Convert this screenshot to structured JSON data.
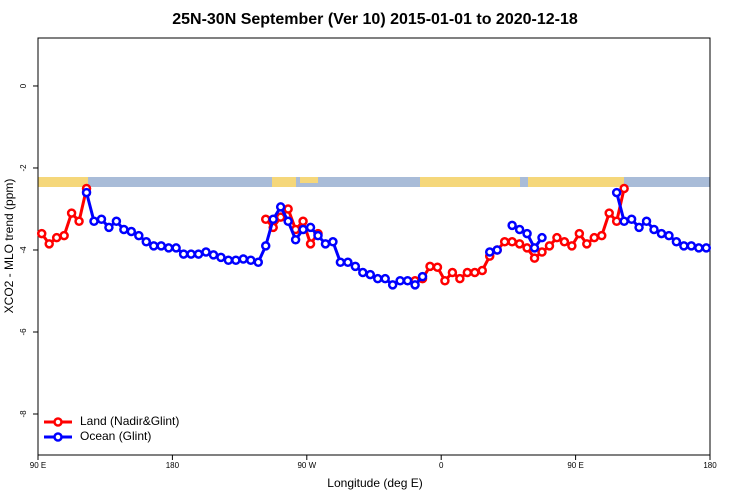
{
  "chart_data": {
    "type": "line",
    "title": "25N-30N September (Ver 10)   2015-01-01 to 2020-12-18",
    "x_label": "Longitude (deg E)",
    "y_label": "XCO2 - MLO trend (ppm)",
    "xlim": [
      90,
      540
    ],
    "ylim": [
      -9,
      1.17
    ],
    "xticks": [
      {
        "value": 90,
        "label": "90 E"
      },
      {
        "value": 180,
        "label": "180"
      },
      {
        "value": 270,
        "label": "90 W"
      },
      {
        "value": 360,
        "label": "0"
      },
      {
        "value": 450,
        "label": "90 E"
      },
      {
        "value": 540,
        "label": "180"
      }
    ],
    "yticks": [
      -8,
      -6,
      -4,
      -2,
      0
    ],
    "legend": "bottom-left",
    "series": [
      {
        "name": "Land (Nadir&Glint)",
        "color": "#ff0000",
        "x": [
          92.5,
          97.5,
          102.5,
          107.5,
          112.5,
          117.5,
          122.5,
          182.5,
          242.5,
          247.5,
          252.5,
          257.5,
          262.5,
          267.5,
          272.5,
          277.5,
          310,
          342.5,
          347.5,
          352.5,
          357.5,
          362.5,
          367.5,
          372.5,
          377.5,
          382.5,
          387.5,
          392.5,
          397.5,
          402.5,
          407.5,
          412.5,
          417.5,
          422.5,
          427.5,
          432.5,
          437.5,
          442.5,
          447.5,
          452.5,
          457.5,
          462.5,
          467.5,
          472.5,
          477.5,
          482.5
        ],
        "values": [
          -3.6,
          -3.85,
          -3.7,
          -3.65,
          -3.1,
          -3.3,
          -2.5,
          null,
          -3.25,
          -3.45,
          -3.2,
          -3.0,
          -3.5,
          -3.3,
          -3.85,
          -3.6,
          null,
          -4.75,
          -4.7,
          -4.4,
          -4.42,
          -4.75,
          -4.55,
          -4.7,
          -4.55,
          -4.55,
          -4.5,
          -4.15,
          -4.0,
          -3.8,
          -3.8,
          -3.85,
          -3.95,
          -4.2,
          -4.05,
          -3.9,
          -3.7,
          -3.8,
          -3.9,
          -3.6,
          -3.85,
          -3.7,
          -3.65,
          -3.1,
          -3.3,
          -2.5
        ]
      },
      {
        "name": "Ocean (Glint)",
        "color": "#0000ff",
        "x": [
          122.5,
          127.5,
          132.5,
          137.5,
          142.5,
          147.5,
          152.5,
          157.5,
          162.5,
          167.5,
          172.5,
          177.5,
          182.5,
          187.5,
          192.5,
          197.5,
          202.5,
          207.5,
          212.5,
          217.5,
          222.5,
          227.5,
          232.5,
          237.5,
          242.5,
          247.5,
          252.5,
          257.5,
          262.5,
          267.5,
          272.5,
          277.5,
          282.5,
          287.5,
          292.5,
          297.5,
          302.5,
          307.5,
          312.5,
          317.5,
          322.5,
          327.5,
          332.5,
          337.5,
          342.5,
          347.5,
          370,
          392.5,
          397.5,
          402.5,
          407.5,
          412.5,
          417.5,
          422.5,
          427.5,
          450,
          477.5,
          482.5,
          487.5,
          492.5,
          497.5,
          502.5,
          507.5,
          512.5,
          517.5,
          522.5,
          527.5,
          532.5,
          537.5
        ],
        "values": [
          -2.6,
          -3.3,
          -3.25,
          -3.45,
          -3.3,
          -3.5,
          -3.55,
          -3.65,
          -3.8,
          -3.9,
          -3.9,
          -3.95,
          -3.95,
          -4.1,
          -4.1,
          -4.1,
          -4.05,
          -4.12,
          -4.18,
          -4.25,
          -4.25,
          -4.22,
          -4.25,
          -4.3,
          -3.9,
          -3.25,
          -2.95,
          -3.3,
          -3.75,
          -3.5,
          -3.45,
          -3.65,
          -3.85,
          -3.8,
          -4.3,
          -4.3,
          -4.4,
          -4.55,
          -4.6,
          -4.7,
          -4.7,
          -4.85,
          -4.75,
          -4.75,
          -4.85,
          -4.65,
          null,
          -4.05,
          -4.0,
          null,
          -3.4,
          -3.5,
          -3.6,
          -3.95,
          -3.7,
          null,
          -2.6,
          -3.3,
          -3.25,
          -3.45,
          -3.3,
          -3.5,
          -3.6,
          -3.65,
          -3.8,
          -3.9,
          -3.9,
          -3.95,
          -3.95
        ]
      }
    ]
  }
}
